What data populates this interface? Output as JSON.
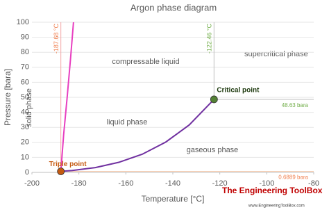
{
  "chart_data": {
    "type": "line",
    "title": "Argon phase diagram",
    "x_label": "Temperature [°C]",
    "y_label": "Pressure [bara]",
    "xlim": [
      -200,
      -80
    ],
    "xticks": [
      -200,
      -180,
      -160,
      -140,
      -120,
      -100,
      -80
    ],
    "ylim": [
      0,
      100
    ],
    "yticks": [
      0,
      10,
      20,
      30,
      40,
      50,
      60,
      70,
      80,
      90,
      100
    ],
    "grid": true,
    "series": [
      {
        "color": "#e83fc0",
        "x": [
          -187.68,
          -186.5,
          -185,
          -183.6,
          -182.3
        ],
        "y": [
          0.6889,
          25,
          50,
          75,
          100
        ]
      },
      {
        "color": "#7030a0",
        "x": [
          -187.68,
          -183,
          -173,
          -163,
          -153,
          -143,
          -133,
          -122.46
        ],
        "y": [
          0.6889,
          1.2,
          3.2,
          6.7,
          12.1,
          20.2,
          31.6,
          48.63
        ]
      }
    ],
    "vlines": [
      {
        "value": -187.68,
        "label": "-187.68 °C",
        "color": "#f4a6a6",
        "label_color": "#f08050"
      },
      {
        "value": -122.46,
        "label": "-122.46 °C",
        "color": "#bfbfbf",
        "label_color": "#70ad47"
      }
    ],
    "hlines": [
      {
        "value": 48.63,
        "label": "48.63 bara",
        "color": "#bfbfbf",
        "label_color": "#70ad47"
      },
      {
        "value": 0.6889,
        "label": "0.6889 bara",
        "color": "#f8cbad",
        "label_color": "#f08050"
      }
    ],
    "points": [
      {
        "x": -122.46,
        "y": 48.63,
        "label": "Critical point",
        "color": "#548235",
        "label_color": "#1e3a0f"
      },
      {
        "x": -187.68,
        "y": 0.6889,
        "label": "Triple point",
        "color": "#c55a11",
        "label_color": "#c55a11"
      }
    ],
    "regions": [
      "compressable liquid",
      "supercritical phase",
      "solid phase",
      "liquid phase",
      "gaseous phase"
    ],
    "watermark": "The Engineering ToolBox",
    "watermark_url": "www.EngineeringToolBox.com"
  }
}
